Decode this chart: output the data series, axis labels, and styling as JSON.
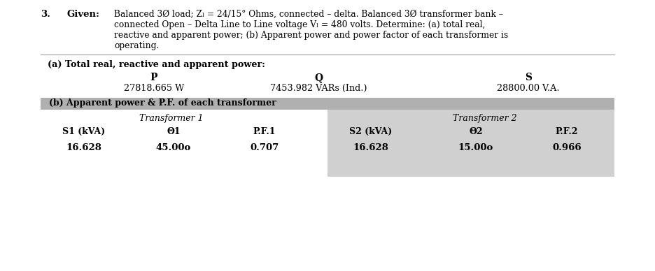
{
  "problem_number": "3.",
  "given_label": "Given:",
  "given_lines": [
    "Balanced 3Ø load; Zₗ = 24/15° Ohms, connected – delta. Balanced 3Ø transformer bank –",
    "connected Open – Delta Line to Line voltage Vₗ = 480 volts. Determine: (a) total real,",
    "reactive and apparent power; (b) Apparent power and power factor of each transformer is",
    "operating."
  ],
  "section_a_title": "(a) Total real, reactive and apparent power:",
  "P_label": "P",
  "P_value": "27818.665 W",
  "Q_label": "Q",
  "Q_value": "7453.982 VARs (Ind.)",
  "S_label": "S",
  "S_value": "28800.00 V.A.",
  "section_b_title": "(b) Apparent power & P.F. of each transformer",
  "t1_header": "Transformer 1",
  "t2_header": "Transformer 2",
  "col1_headers": [
    "S1 (kVA)",
    "Θ1",
    "P.F.1"
  ],
  "col2_headers": [
    "S2 (kVA)",
    "Θ2",
    "P.F.2"
  ],
  "col1_values": [
    "16.628",
    "45.00o",
    "0.707"
  ],
  "col2_values": [
    "16.628",
    "15.00o",
    "0.966"
  ],
  "bg_color": "#ffffff",
  "table_header_bg": "#b0b0b0",
  "table_row_bg_right": "#d0d0d0",
  "text_color": "#000000",
  "separator_color": "#aaaaaa",
  "fig_width": 9.36,
  "fig_height": 3.88,
  "dpi": 100
}
